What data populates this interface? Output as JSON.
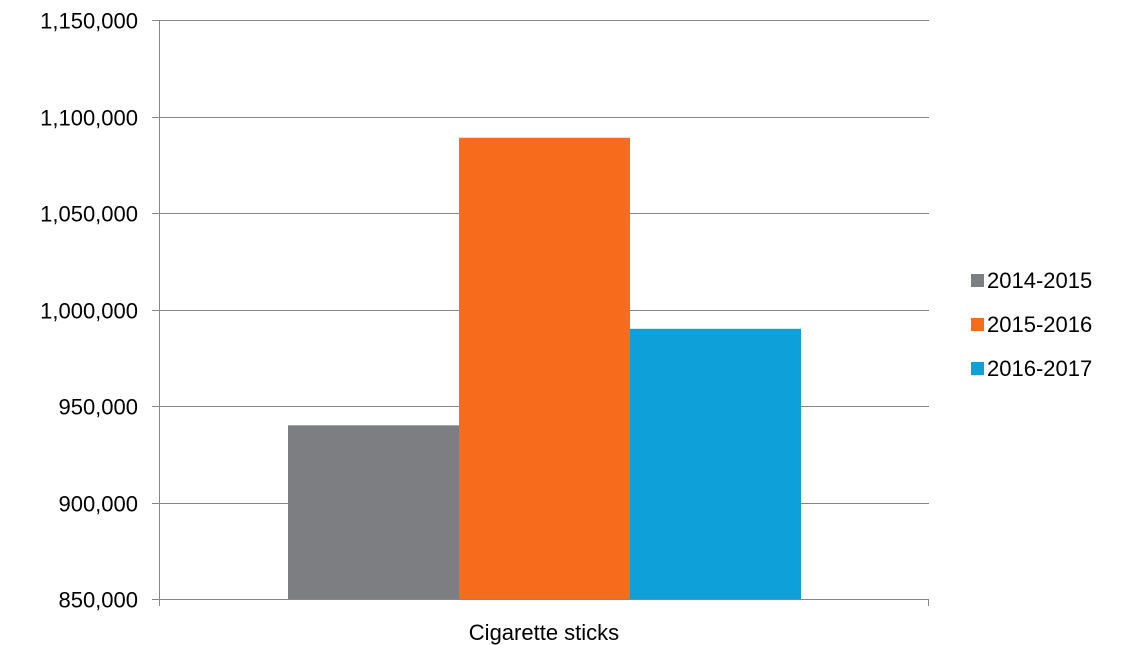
{
  "chart_data": {
    "type": "bar",
    "categories": [
      "Cigarette sticks"
    ],
    "series": [
      {
        "name": "2014-2015",
        "values": [
          940000
        ],
        "color": "#7d7e81"
      },
      {
        "name": "2015-2016",
        "values": [
          1089000
        ],
        "color": "#f76b1c"
      },
      {
        "name": "2016-2017",
        "values": [
          990000
        ],
        "color": "#0ea0d8"
      }
    ],
    "ylim": [
      850000,
      1150000
    ],
    "yticks": [
      850000,
      900000,
      950000,
      1000000,
      1050000,
      1100000,
      1150000
    ],
    "ytick_labels": [
      "850,000",
      "900,000",
      "950,000",
      "1,000,000",
      "1,050,000",
      "1,100,000",
      "1,150,000"
    ],
    "title": "",
    "xlabel": "",
    "ylabel": "",
    "grid": true,
    "legend_position": "right"
  }
}
